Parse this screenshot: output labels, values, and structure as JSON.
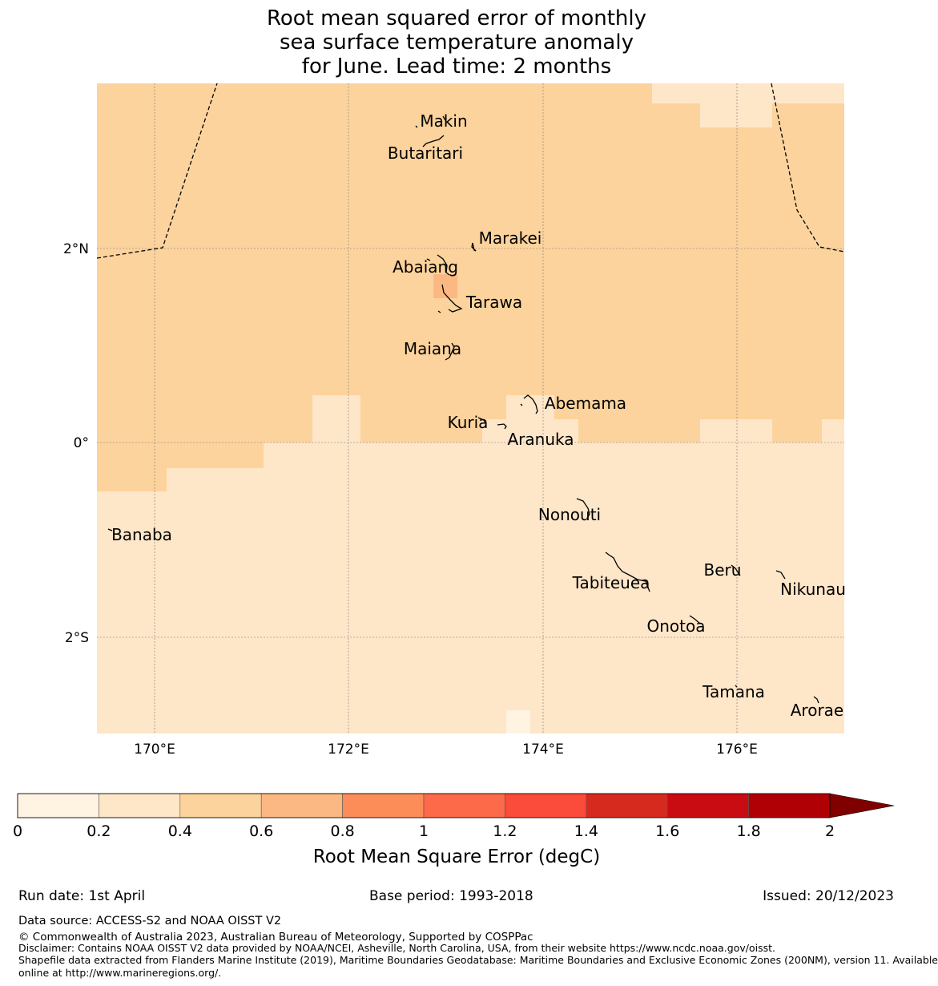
{
  "title": {
    "line1": "Root mean squared error of monthly",
    "line2": "sea surface temperature anomaly",
    "line3": "for June. Lead time: 2 months"
  },
  "map": {
    "lon_range": [
      169.4,
      177.1
    ],
    "lat_range": [
      -3.0,
      3.7
    ],
    "lat_ticks": [
      {
        "value": 2,
        "label": "2°N"
      },
      {
        "value": 0,
        "label": "0°"
      },
      {
        "value": -2,
        "label": "2°S"
      }
    ],
    "lon_ticks": [
      {
        "value": 170,
        "label": "170°E"
      },
      {
        "value": 172,
        "label": "172°E"
      },
      {
        "value": 174,
        "label": "174°E"
      },
      {
        "value": 176,
        "label": "176°E"
      }
    ],
    "island_labels": [
      {
        "name": "Makin",
        "lon": 173.0,
        "lat": 3.3
      },
      {
        "name": "Butaritari",
        "lon": 172.8,
        "lat": 2.95
      },
      {
        "name": "Marakei",
        "lon": 173.3,
        "lat": 2.05
      },
      {
        "name": "Abaiang",
        "lon": 172.9,
        "lat": 1.8
      },
      {
        "name": "Tarawa",
        "lon": 173.1,
        "lat": 1.45
      },
      {
        "name": "Maiana",
        "lon": 173.0,
        "lat": 1.0
      },
      {
        "name": "Abemama",
        "lon": 173.9,
        "lat": 0.45
      },
      {
        "name": "Kuria",
        "lon": 173.4,
        "lat": 0.22
      },
      {
        "name": "Aranuka",
        "lon": 173.6,
        "lat": 0.16
      },
      {
        "name": "Nonouti",
        "lon": 174.4,
        "lat": -0.65
      },
      {
        "name": "Banaba",
        "lon": 169.5,
        "lat": -0.9
      },
      {
        "name": "Tabiteuea",
        "lon": 174.9,
        "lat": -1.35
      },
      {
        "name": "Beru",
        "lon": 176.0,
        "lat": -1.35
      },
      {
        "name": "Nikunau",
        "lon": 176.45,
        "lat": -1.35
      },
      {
        "name": "Onotoa",
        "lon": 175.55,
        "lat": -1.8
      },
      {
        "name": "Tamana",
        "lon": 175.98,
        "lat": -2.5
      },
      {
        "name": "Arorae",
        "lon": 176.82,
        "lat": -2.65
      }
    ],
    "rmse_classes": [
      {
        "range": "0.2-0.4",
        "color": "#fee6c8"
      },
      {
        "range": "0.4-0.6",
        "color": "#fcd39c"
      },
      {
        "range": "0.6-0.8",
        "color": "#fcb882"
      }
    ]
  },
  "colorbar": {
    "ticks": [
      "0",
      "0.2",
      "0.4",
      "0.6",
      "0.8",
      "1",
      "1.2",
      "1.4",
      "1.6",
      "1.8",
      "2"
    ],
    "colors": [
      "#fff3e2",
      "#fee6c8",
      "#fcd39c",
      "#fcb882",
      "#fc8d58",
      "#fd6a4a",
      "#fb4b3a",
      "#d72a1e",
      "#c90c12",
      "#b00006"
    ],
    "extend_color": "#800000",
    "label": "Root Mean Square Error (degC)"
  },
  "footer": {
    "run_date": "Run date: 1st April",
    "base_period": "Base period: 1993-2018",
    "issued": "Issued: 20/12/2023",
    "data_source": "Data source: ACCESS-S2 and NOAA OISST V2",
    "copyright": "© Commonwealth of Australia 2023, Australian Bureau of Meteorology, Supported by COSPPac",
    "disclaimer": "Disclaimer: Contains NOAA OISST V2 data provided by NOAA/NCEI, Asheville, North Carolina, USA, from their website https://www.ncdc.noaa.gov/oisst.",
    "shapefile_1": "Shapefile data extracted from Flanders Marine Institute (2019), Maritime Boundaries Geodatabase: Maritime Boundaries and Exclusive Economic Zones (200NM), version 11. Available",
    "shapefile_2": "online at http://www.marineregions.org/."
  }
}
